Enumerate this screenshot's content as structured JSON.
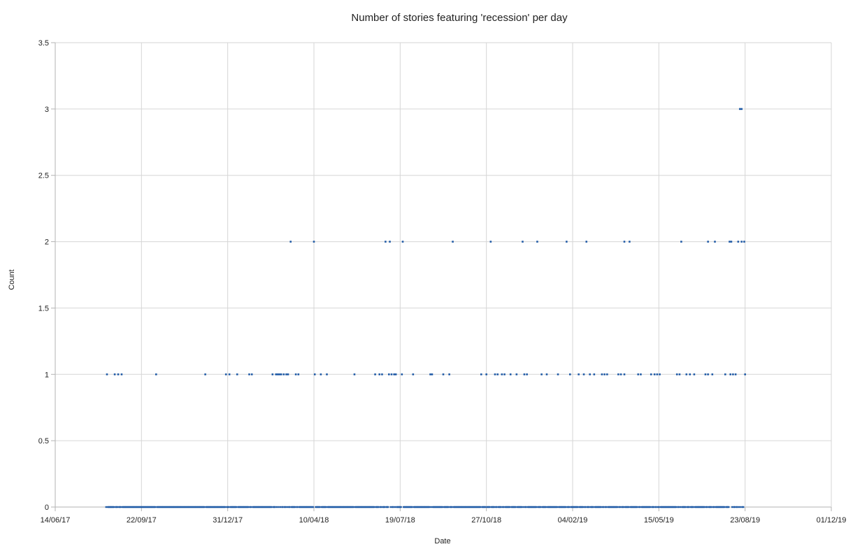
{
  "chart_data": {
    "type": "scatter",
    "title": "Number of stories featuring 'recession' per day",
    "xlabel": "Date",
    "ylabel": "Count",
    "x_axis_type": "date",
    "xlim": [
      "2017-06-14",
      "2019-12-01"
    ],
    "ylim": [
      0,
      3.5
    ],
    "x_ticks": [
      "2017-06-14",
      "2017-09-22",
      "2017-12-31",
      "2018-04-10",
      "2018-07-19",
      "2018-10-27",
      "2019-02-04",
      "2019-05-15",
      "2019-08-23",
      "2019-12-01"
    ],
    "x_tick_labels": [
      "14/06/17",
      "22/09/17",
      "31/12/17",
      "10/04/18",
      "19/07/18",
      "27/10/18",
      "04/02/19",
      "15/05/19",
      "23/08/19",
      "01/12/19"
    ],
    "y_ticks": [
      0,
      0.5,
      1,
      1.5,
      2,
      2.5,
      3,
      3.5
    ],
    "y_tick_labels": [
      "0",
      "0.5",
      "1",
      "1.5",
      "2",
      "2.5",
      "3",
      "3.5"
    ],
    "grid": true,
    "legend": "none",
    "series_color": "#1f5aa6",
    "zero_range": [
      "2017-08-12",
      "2019-08-23"
    ],
    "points": [
      {
        "x": "2017-08-13",
        "y": 1
      },
      {
        "x": "2017-08-22",
        "y": 1
      },
      {
        "x": "2017-08-26",
        "y": 1
      },
      {
        "x": "2017-08-30",
        "y": 1
      },
      {
        "x": "2017-10-09",
        "y": 1
      },
      {
        "x": "2017-12-05",
        "y": 1
      },
      {
        "x": "2017-12-29",
        "y": 1
      },
      {
        "x": "2018-01-02",
        "y": 1
      },
      {
        "x": "2018-01-11",
        "y": 1
      },
      {
        "x": "2018-01-25",
        "y": 1
      },
      {
        "x": "2018-01-28",
        "y": 1
      },
      {
        "x": "2018-02-21",
        "y": 1
      },
      {
        "x": "2018-02-25",
        "y": 1
      },
      {
        "x": "2018-02-27",
        "y": 1
      },
      {
        "x": "2018-03-01",
        "y": 1
      },
      {
        "x": "2018-03-03",
        "y": 1
      },
      {
        "x": "2018-03-06",
        "y": 1
      },
      {
        "x": "2018-03-09",
        "y": 1
      },
      {
        "x": "2018-03-11",
        "y": 1
      },
      {
        "x": "2018-03-20",
        "y": 1
      },
      {
        "x": "2018-03-23",
        "y": 1
      },
      {
        "x": "2018-04-11",
        "y": 1
      },
      {
        "x": "2018-04-18",
        "y": 1
      },
      {
        "x": "2018-04-25",
        "y": 1
      },
      {
        "x": "2018-05-27",
        "y": 1
      },
      {
        "x": "2018-06-20",
        "y": 1
      },
      {
        "x": "2018-06-25",
        "y": 1
      },
      {
        "x": "2018-06-28",
        "y": 1
      },
      {
        "x": "2018-07-06",
        "y": 1
      },
      {
        "x": "2018-07-09",
        "y": 1
      },
      {
        "x": "2018-07-12",
        "y": 1
      },
      {
        "x": "2018-07-14",
        "y": 1
      },
      {
        "x": "2018-07-21",
        "y": 1
      },
      {
        "x": "2018-08-03",
        "y": 1
      },
      {
        "x": "2018-08-23",
        "y": 1
      },
      {
        "x": "2018-08-25",
        "y": 1
      },
      {
        "x": "2018-09-07",
        "y": 1
      },
      {
        "x": "2018-09-14",
        "y": 1
      },
      {
        "x": "2018-10-21",
        "y": 1
      },
      {
        "x": "2018-10-27",
        "y": 1
      },
      {
        "x": "2018-11-06",
        "y": 1
      },
      {
        "x": "2018-11-09",
        "y": 1
      },
      {
        "x": "2018-11-14",
        "y": 1
      },
      {
        "x": "2018-11-17",
        "y": 1
      },
      {
        "x": "2018-11-24",
        "y": 1
      },
      {
        "x": "2018-12-01",
        "y": 1
      },
      {
        "x": "2018-12-10",
        "y": 1
      },
      {
        "x": "2018-12-13",
        "y": 1
      },
      {
        "x": "2018-12-30",
        "y": 1
      },
      {
        "x": "2019-01-05",
        "y": 1
      },
      {
        "x": "2019-01-18",
        "y": 1
      },
      {
        "x": "2019-02-01",
        "y": 1
      },
      {
        "x": "2019-02-11",
        "y": 1
      },
      {
        "x": "2019-02-17",
        "y": 1
      },
      {
        "x": "2019-02-24",
        "y": 1
      },
      {
        "x": "2019-03-01",
        "y": 1
      },
      {
        "x": "2019-03-10",
        "y": 1
      },
      {
        "x": "2019-03-13",
        "y": 1
      },
      {
        "x": "2019-03-16",
        "y": 1
      },
      {
        "x": "2019-03-29",
        "y": 1
      },
      {
        "x": "2019-04-01",
        "y": 1
      },
      {
        "x": "2019-04-05",
        "y": 1
      },
      {
        "x": "2019-04-21",
        "y": 1
      },
      {
        "x": "2019-04-24",
        "y": 1
      },
      {
        "x": "2019-05-06",
        "y": 1
      },
      {
        "x": "2019-05-10",
        "y": 1
      },
      {
        "x": "2019-05-13",
        "y": 1
      },
      {
        "x": "2019-05-16",
        "y": 1
      },
      {
        "x": "2019-06-05",
        "y": 1
      },
      {
        "x": "2019-06-08",
        "y": 1
      },
      {
        "x": "2019-06-16",
        "y": 1
      },
      {
        "x": "2019-06-20",
        "y": 1
      },
      {
        "x": "2019-06-25",
        "y": 1
      },
      {
        "x": "2019-07-08",
        "y": 1
      },
      {
        "x": "2019-07-11",
        "y": 1
      },
      {
        "x": "2019-07-16",
        "y": 1
      },
      {
        "x": "2019-07-31",
        "y": 1
      },
      {
        "x": "2019-08-06",
        "y": 1
      },
      {
        "x": "2019-08-09",
        "y": 1
      },
      {
        "x": "2019-08-12",
        "y": 1
      },
      {
        "x": "2019-08-23",
        "y": 1
      },
      {
        "x": "2018-03-14",
        "y": 2
      },
      {
        "x": "2018-04-10",
        "y": 2
      },
      {
        "x": "2018-07-02",
        "y": 2
      },
      {
        "x": "2018-07-07",
        "y": 2
      },
      {
        "x": "2018-07-22",
        "y": 2
      },
      {
        "x": "2018-09-18",
        "y": 2
      },
      {
        "x": "2018-11-01",
        "y": 2
      },
      {
        "x": "2018-12-08",
        "y": 2
      },
      {
        "x": "2018-12-25",
        "y": 2
      },
      {
        "x": "2019-01-28",
        "y": 2
      },
      {
        "x": "2019-02-20",
        "y": 2
      },
      {
        "x": "2019-04-05",
        "y": 2
      },
      {
        "x": "2019-04-11",
        "y": 2
      },
      {
        "x": "2019-06-10",
        "y": 2
      },
      {
        "x": "2019-07-11",
        "y": 2
      },
      {
        "x": "2019-07-19",
        "y": 2
      },
      {
        "x": "2019-08-05",
        "y": 2
      },
      {
        "x": "2019-08-07",
        "y": 2
      },
      {
        "x": "2019-08-15",
        "y": 2
      },
      {
        "x": "2019-08-19",
        "y": 2
      },
      {
        "x": "2019-08-22",
        "y": 2
      },
      {
        "x": "2019-08-17",
        "y": 3
      },
      {
        "x": "2019-08-19",
        "y": 3
      }
    ]
  }
}
